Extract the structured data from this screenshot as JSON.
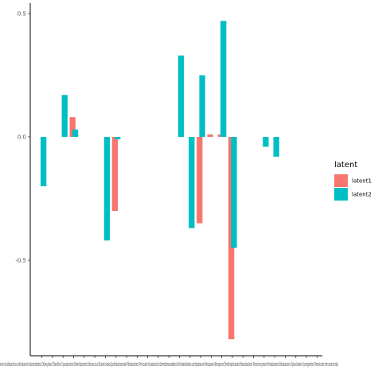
{
  "chart_data": {
    "type": "bar",
    "title": "",
    "xlabel": "",
    "ylabel": "",
    "ylim": [
      -0.88,
      0.54
    ],
    "yticks": [
      0.5,
      0.0,
      -0.5
    ],
    "ytick_labels": [
      "0.5",
      "0.0",
      "-0.5"
    ],
    "grid": false,
    "legend_placement": "right",
    "legend_title": "latent",
    "categories": [
      "Acidobacteria",
      "Actinobacteria",
      "Bacteroidetes",
      "Chlamydiae",
      "Chloroflexi",
      "Cyanobacteria",
      "Deferribacteres",
      "Deinococcus",
      "Elusimicrobia",
      "Epsilonbacteraeota",
      "Fibrobacteres",
      "Firmicutes",
      "Fusobacteria",
      "Gemmatimonadetes",
      "Kiritimatiellaeota",
      "Lentisphaerae",
      "Nitrospinae",
      "Nitrospirae",
      "Omnitrophicaeota",
      "Patescibacteria",
      "Planctomycetes",
      "Proteobacteria",
      "Rokubacteria",
      "Spirochaetes",
      "Synergistetes",
      "Tenericutes",
      "Verrucomicrobia"
    ],
    "tick_labels_text": "erum Acidobacteria Actinobacteria Bacteroidetes Chlamydiae Chloroflexi Cyanobacteria Deferribacteres Deinococcus Elusimicrobia Epsilonbacteraeota Fibrobacteres Firmicutes Fusobacteria Gemmatimonadetes Kiritimatiellaeota Lentisphaerae Nitrospinae Nitrospirae Omnitrophicaeota Patescibacteria Planctomycetes Proteobacteria Rokubacteria Spirochaetes Synergistetes Tenericutes Verrucomicrobia",
    "series": [
      {
        "name": "latent1",
        "color": "#F8766D",
        "values": [
          0,
          0,
          0,
          0.08,
          0,
          0,
          0,
          -0.3,
          0,
          0,
          0,
          0,
          0,
          0,
          0,
          -0.35,
          0.01,
          0.01,
          -0.82,
          0,
          0,
          0,
          0,
          0,
          0,
          0,
          0
        ]
      },
      {
        "name": "latent2",
        "color": "#00BFC4",
        "values": [
          -0.2,
          0,
          0.17,
          0.03,
          0,
          0,
          -0.42,
          -0.01,
          0,
          0,
          0,
          0,
          0,
          0.33,
          -0.37,
          0.25,
          0,
          0.47,
          -0.45,
          0,
          0,
          -0.04,
          -0.08,
          0,
          0,
          0,
          0
        ]
      }
    ]
  }
}
